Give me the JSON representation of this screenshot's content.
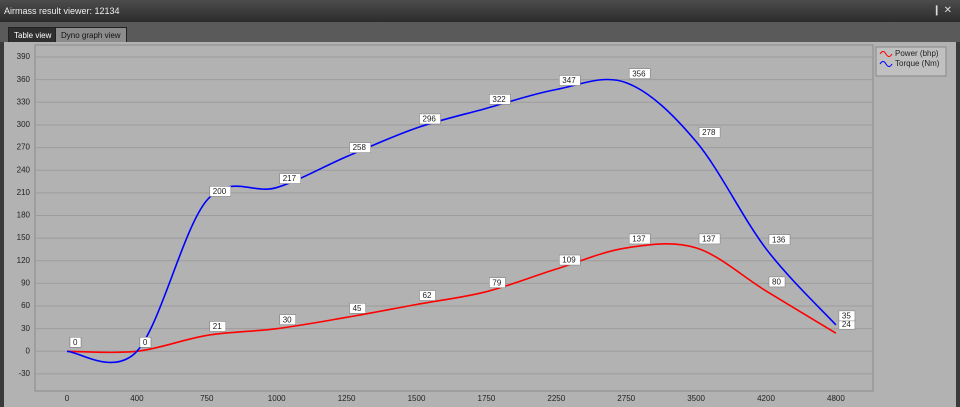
{
  "window": {
    "title": "Airmass result viewer: 12134",
    "tabs": [
      "Table view",
      "Dyno graph view"
    ]
  },
  "chart_data": {
    "type": "line",
    "categories": [
      "0",
      "400",
      "750",
      "1000",
      "1250",
      "1500",
      "1750",
      "2250",
      "2750",
      "3500",
      "4200",
      "4800"
    ],
    "series": [
      {
        "name": "Power (bhp)",
        "color": "#ff0000",
        "values": [
          0,
          0,
          21,
          30,
          45,
          62,
          79,
          109,
          137,
          137,
          80,
          24
        ]
      },
      {
        "name": "Torque (Nm)",
        "color": "#0000ff",
        "values": [
          0,
          0,
          200,
          217,
          258,
          296,
          322,
          347,
          356,
          278,
          136,
          35
        ]
      }
    ],
    "ylim": [
      -50,
      400
    ],
    "yticks": [
      -30,
      0,
      30,
      60,
      90,
      120,
      150,
      180,
      210,
      240,
      270,
      300,
      330,
      360,
      390
    ],
    "grid": true,
    "legend": "top-right"
  }
}
